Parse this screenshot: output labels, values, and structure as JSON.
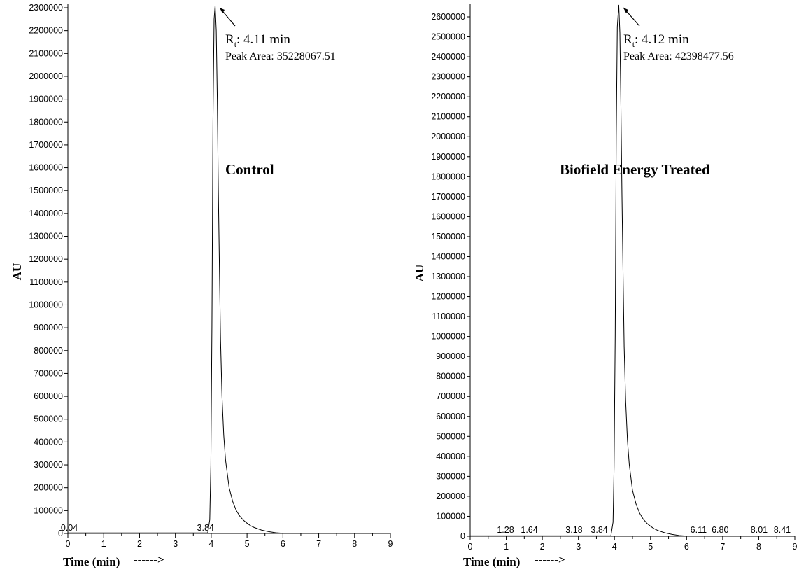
{
  "chart_data": [
    {
      "type": "line",
      "title": "Control",
      "ylabel": "AU",
      "xlabel": "Time (min)",
      "xlabel_arrow": "------>",
      "xlim": [
        0,
        9
      ],
      "ylim": [
        0,
        2300000
      ],
      "xticks": [
        "0",
        "1",
        "2",
        "3",
        "4",
        "5",
        "6",
        "7",
        "8",
        "9"
      ],
      "yticks": [
        "0",
        "100000",
        "200000",
        "300000",
        "400000",
        "500000",
        "600000",
        "700000",
        "800000",
        "900000",
        "1000000",
        "1100000",
        "1200000",
        "1300000",
        "1400000",
        "1500000",
        "1600000",
        "1700000",
        "1800000",
        "1900000",
        "2000000",
        "2100000",
        "2200000",
        "2300000"
      ],
      "peak_labels": [
        "0.04",
        "3.84"
      ],
      "peak_label_x": [
        0.04,
        3.84
      ],
      "main_peak": {
        "rt_prefix": "R",
        "rt_sub": "t",
        "rt_text": ": 4.11 min",
        "area_text": "Peak Area:  35228067.51",
        "x": 4.11,
        "y": 2310000
      },
      "series": [
        {
          "x": [
            0,
            3.9,
            3.96,
            3.99,
            4.02,
            4.05,
            4.08,
            4.11,
            4.14,
            4.17,
            4.2,
            4.23,
            4.26,
            4.3,
            4.35,
            4.4,
            4.5,
            4.6,
            4.7,
            4.8,
            4.9,
            5.0,
            5.1,
            5.2,
            5.4,
            5.6,
            5.8,
            6.0,
            9.0
          ],
          "y": [
            2000,
            2000,
            60000,
            300000,
            900000,
            1800000,
            2250000,
            2310000,
            2200000,
            1900000,
            1500000,
            1150000,
            850000,
            600000,
            430000,
            320000,
            200000,
            140000,
            100000,
            75000,
            58000,
            45000,
            34000,
            26000,
            15000,
            8000,
            3000,
            1000,
            1000
          ]
        }
      ]
    },
    {
      "type": "line",
      "title": "Biofield Energy Treated",
      "ylabel": "AU",
      "xlabel": "Time (min)",
      "xlabel_arrow": "------>",
      "xlim": [
        0,
        9
      ],
      "ylim": [
        0,
        2600000
      ],
      "xticks": [
        "0",
        "1",
        "2",
        "3",
        "4",
        "5",
        "6",
        "7",
        "8",
        "9"
      ],
      "yticks": [
        "0",
        "100000",
        "200000",
        "300000",
        "400000",
        "500000",
        "600000",
        "700000",
        "800000",
        "900000",
        "1000000",
        "1100000",
        "1200000",
        "1300000",
        "1400000",
        "1500000",
        "1600000",
        "1700000",
        "1800000",
        "1900000",
        "2000000",
        "2100000",
        "2200000",
        "2300000",
        "2400000",
        "2500000",
        "2600000"
      ],
      "peak_labels": [
        "1.28",
        "1.64",
        "3.18",
        "3.84",
        "6.11",
        "6.80",
        "8.01",
        "8.41"
      ],
      "peak_label_x": [
        0.98,
        1.64,
        2.88,
        3.58,
        6.33,
        6.93,
        8.01,
        8.65
      ],
      "main_peak": {
        "rt_prefix": "R",
        "rt_sub": "t",
        "rt_text": ": 4.12 min",
        "area_text": "Peak Area:  42398477.56",
        "x": 4.12,
        "y": 2660000
      },
      "series": [
        {
          "x": [
            0,
            3.9,
            3.96,
            3.99,
            4.02,
            4.05,
            4.08,
            4.12,
            4.15,
            4.18,
            4.21,
            4.24,
            4.27,
            4.31,
            4.36,
            4.41,
            4.5,
            4.6,
            4.7,
            4.8,
            4.9,
            5.0,
            5.1,
            5.2,
            5.4,
            5.6,
            5.8,
            6.0,
            9.0
          ],
          "y": [
            2000,
            2000,
            70000,
            350000,
            1000000,
            2000000,
            2550000,
            2660000,
            2520000,
            2150000,
            1700000,
            1300000,
            950000,
            680000,
            480000,
            360000,
            230000,
            160000,
            115000,
            85000,
            65000,
            50000,
            38000,
            29000,
            17000,
            9000,
            3500,
            1000,
            1000
          ]
        }
      ]
    }
  ]
}
